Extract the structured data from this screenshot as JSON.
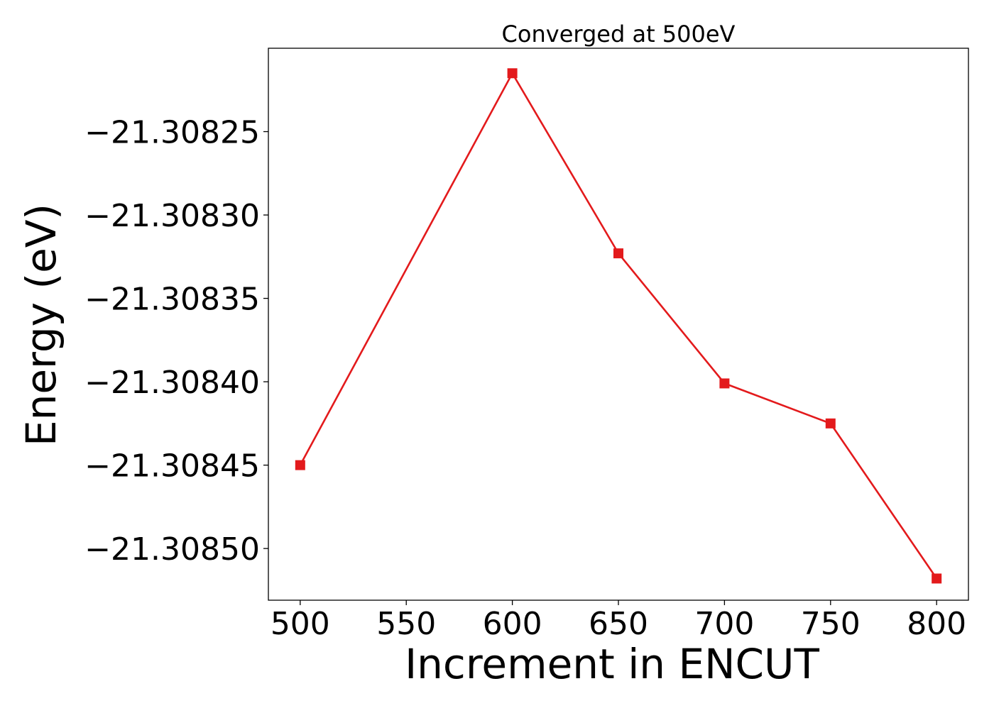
{
  "chart_data": {
    "type": "line",
    "title": "Converged at 500eV",
    "xlabel": "Increment in ENCUT",
    "ylabel": "Energy (eV)",
    "x": [
      500,
      600,
      650,
      700,
      750,
      800
    ],
    "series": [
      {
        "values": [
          -21.30845,
          -21.308215,
          -21.308323,
          -21.308401,
          -21.308425,
          -21.308518
        ],
        "color": "#e31a1c",
        "marker": "square"
      }
    ],
    "x_ticks": [
      500,
      550,
      600,
      650,
      700,
      750,
      800
    ],
    "x_tick_labels": [
      "500",
      "550",
      "600",
      "650",
      "700",
      "750",
      "800"
    ],
    "y_ticks": [
      -21.30825,
      -21.3083,
      -21.30835,
      -21.3084,
      -21.30845,
      -21.3085
    ],
    "y_tick_labels": [
      "−21.30825",
      "−21.30830",
      "−21.30835",
      "−21.30840",
      "−21.30845",
      "−21.30850"
    ],
    "xlim": [
      485,
      815
    ],
    "ylim": [
      -21.308531,
      -21.3082
    ],
    "grid": false,
    "legend": "none"
  }
}
